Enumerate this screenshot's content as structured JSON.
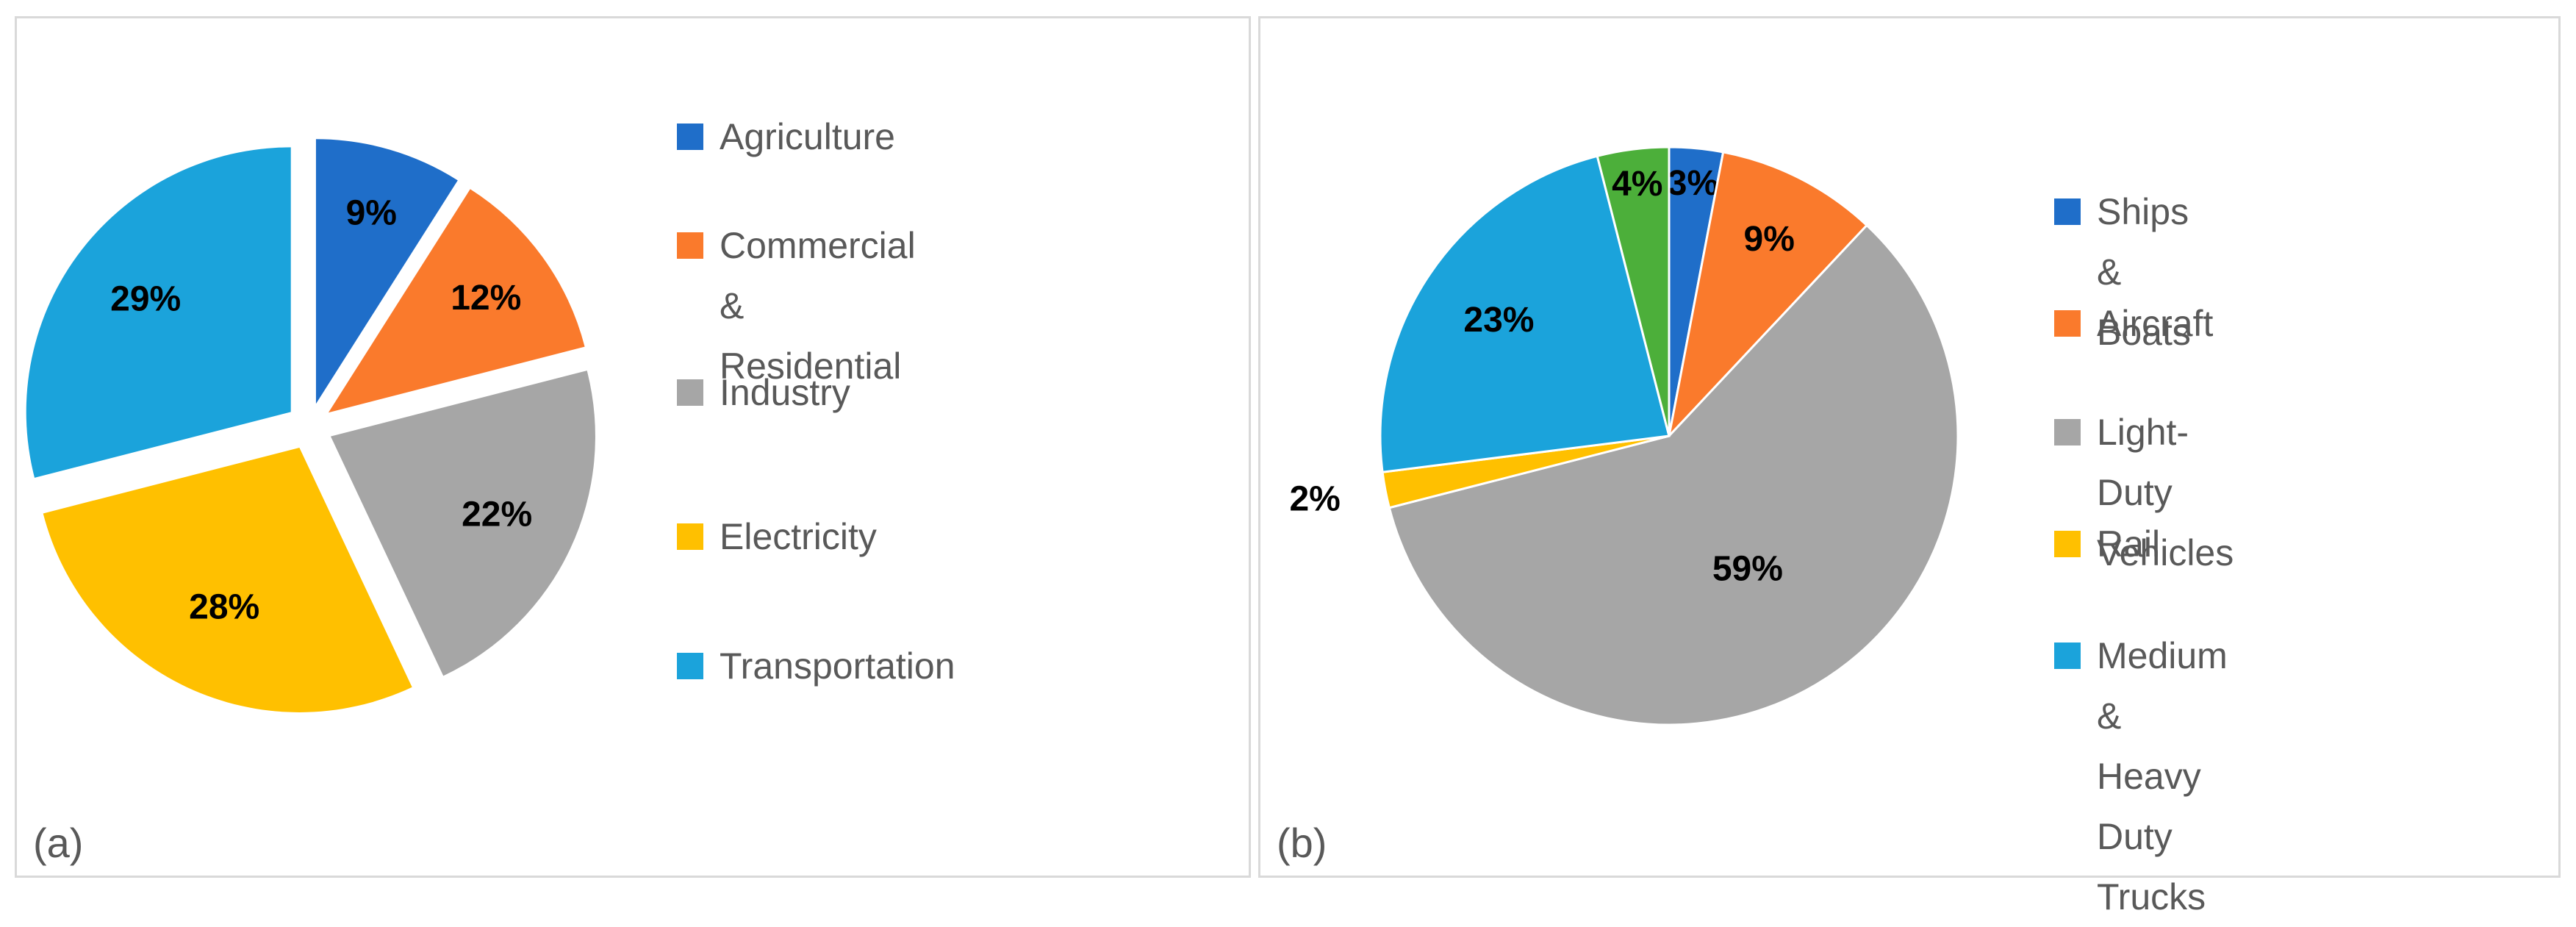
{
  "chart_data": [
    {
      "type": "pie",
      "panel_label": "(a)",
      "exploded": true,
      "categories": [
        "Agriculture",
        "Commercial &\nResidential",
        "Industry",
        "Electricity",
        "Transportation"
      ],
      "values": [
        9,
        12,
        22,
        28,
        29
      ],
      "labels": [
        "9%",
        "12%",
        "22%",
        "28%",
        "29%"
      ],
      "colors": [
        "#1f6ec9",
        "#fa7a2c",
        "#a6a6a6",
        "#ffc000",
        "#1ba3db"
      ],
      "legend_position": "right"
    },
    {
      "type": "pie",
      "panel_label": "(b)",
      "exploded": false,
      "categories": [
        "Ships & Boats",
        "Aircraft",
        "Light-Duty Vehicles",
        "Rail",
        "Medium & Heavy\nDuty Trucks",
        ""
      ],
      "values": [
        3,
        9,
        59,
        2,
        23,
        4
      ],
      "labels": [
        "3%",
        "9%",
        "59%",
        "2%",
        "23%",
        "4%"
      ],
      "colors": [
        "#1f6ec9",
        "#fa7a2c",
        "#a6a6a6",
        "#ffc000",
        "#1ba3db",
        "#4caf3a"
      ],
      "legend_position": "right"
    }
  ]
}
